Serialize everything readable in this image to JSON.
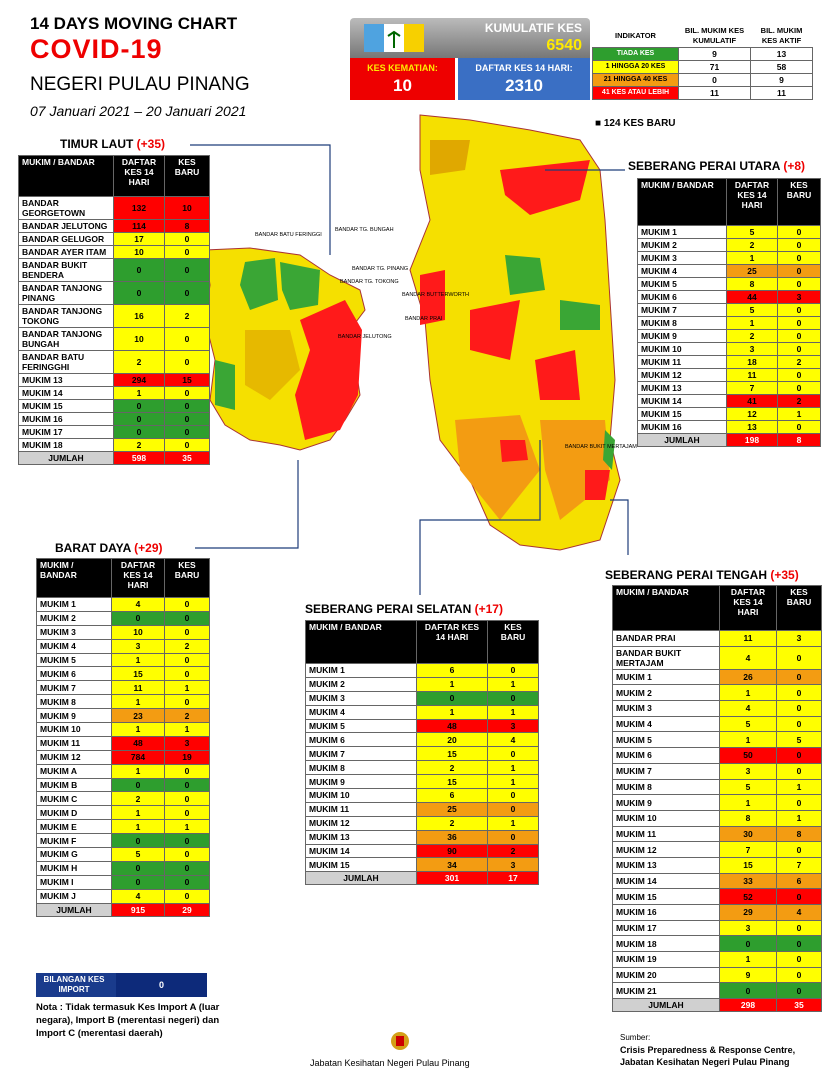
{
  "header": {
    "title": "14  DAYS MOVING CHART",
    "subtitle": "COVID-19",
    "state": "NEGERI PULAU PINANG",
    "dates": "07 Januari 2021 – 20 Januari 2021"
  },
  "summary": {
    "kumulatif_label": "KUMULATIF KES",
    "kumulatif": 6540,
    "kematian_label": "KES KEMATIAN:",
    "kematian": 10,
    "daftar_label": "DAFTAR KES 14 HARI:",
    "daftar": 2310
  },
  "indicator": {
    "headers": [
      "INDIKATOR",
      "BIL. MUKIM KES KUMULATIF",
      "BIL. MUKIM KES AKTIF"
    ],
    "rows": [
      {
        "name": "TIADA KES",
        "kumulatif": 9,
        "aktif": 13,
        "color": "#2e9e2e"
      },
      {
        "name": "1 HINGGA 20 KES",
        "kumulatif": 71,
        "aktif": 58,
        "color": "#ffff00"
      },
      {
        "name": "21 HINGGA 40 KES",
        "kumulatif": 0,
        "aktif": 9,
        "color": "#f39c12"
      },
      {
        "name": "41 KES ATAU LEBIH",
        "kumulatif": 11,
        "aktif": 11,
        "color": "#ff0000"
      }
    ]
  },
  "new_cases": "124 KES BARU",
  "districts": [
    {
      "name": "TIMUR LAUT",
      "badge": "(+35)",
      "headers": [
        "MUKIM / BANDAR",
        "DAFTAR KES 14 HARI",
        "KES BARU"
      ],
      "total_label": "JUMLAH",
      "total_daftar": 598,
      "total_baru": 35,
      "rows": [
        {
          "name": "BANDAR GEORGETOWN",
          "daftar": 132,
          "baru": 10,
          "color": "#ff0000"
        },
        {
          "name": "BANDAR JELUTONG",
          "daftar": 114,
          "baru": 8,
          "color": "#ff0000"
        },
        {
          "name": "BANDAR GELUGOR",
          "daftar": 17,
          "baru": 0,
          "color": "#ffff00"
        },
        {
          "name": "BANDAR AYER ITAM",
          "daftar": 10,
          "baru": 0,
          "color": "#ffff00"
        },
        {
          "name": "BANDAR BUKIT BENDERA",
          "daftar": 0,
          "baru": 0,
          "color": "#2e9e2e"
        },
        {
          "name": "BANDAR TANJONG PINANG",
          "daftar": 0,
          "baru": 0,
          "color": "#2e9e2e"
        },
        {
          "name": "BANDAR TANJONG TOKONG",
          "daftar": 16,
          "baru": 2,
          "color": "#ffff00"
        },
        {
          "name": "BANDAR TANJONG BUNGAH",
          "daftar": 10,
          "baru": 0,
          "color": "#ffff00"
        },
        {
          "name": "BANDAR BATU FERINGGHI",
          "daftar": 2,
          "baru": 0,
          "color": "#ffff00"
        },
        {
          "name": "MUKIM 13",
          "daftar": 294,
          "baru": 15,
          "color": "#ff0000"
        },
        {
          "name": "MUKIM 14",
          "daftar": 1,
          "baru": 0,
          "color": "#ffff00"
        },
        {
          "name": "MUKIM 15",
          "daftar": 0,
          "baru": 0,
          "color": "#2e9e2e"
        },
        {
          "name": "MUKIM 16",
          "daftar": 0,
          "baru": 0,
          "color": "#2e9e2e"
        },
        {
          "name": "MUKIM 17",
          "daftar": 0,
          "baru": 0,
          "color": "#2e9e2e"
        },
        {
          "name": "MUKIM 18",
          "daftar": 2,
          "baru": 0,
          "color": "#ffff00"
        }
      ]
    },
    {
      "name": "SEBERANG PERAI UTARA",
      "badge": "(+8)",
      "headers": [
        "MUKIM / BANDAR",
        "DAFTAR KES 14 HARI",
        "KES BARU"
      ],
      "total_label": "JUMLAH",
      "total_daftar": 198,
      "total_baru": 8,
      "rows": [
        {
          "name": "MUKIM 1",
          "daftar": 5,
          "baru": 0,
          "color": "#ffff00"
        },
        {
          "name": "MUKIM 2",
          "daftar": 2,
          "baru": 0,
          "color": "#ffff00"
        },
        {
          "name": "MUKIM 3",
          "daftar": 1,
          "baru": 0,
          "color": "#ffff00"
        },
        {
          "name": "MUKIM 4",
          "daftar": 25,
          "baru": 0,
          "color": "#f39c12"
        },
        {
          "name": "MUKIM 5",
          "daftar": 8,
          "baru": 0,
          "color": "#ffff00"
        },
        {
          "name": "MUKIM 6",
          "daftar": 44,
          "baru": 3,
          "color": "#ff0000"
        },
        {
          "name": "MUKIM 7",
          "daftar": 5,
          "baru": 0,
          "color": "#ffff00"
        },
        {
          "name": "MUKIM 8",
          "daftar": 1,
          "baru": 0,
          "color": "#ffff00"
        },
        {
          "name": "MUKIM 9",
          "daftar": 2,
          "baru": 0,
          "color": "#ffff00"
        },
        {
          "name": "MUKIM 10",
          "daftar": 3,
          "baru": 0,
          "color": "#ffff00"
        },
        {
          "name": "MUKIM 11",
          "daftar": 18,
          "baru": 2,
          "color": "#ffff00"
        },
        {
          "name": "MUKIM 12",
          "daftar": 11,
          "baru": 0,
          "color": "#ffff00"
        },
        {
          "name": "MUKIM 13",
          "daftar": 7,
          "baru": 0,
          "color": "#ffff00"
        },
        {
          "name": "MUKIM 14",
          "daftar": 41,
          "baru": 2,
          "color": "#ff0000"
        },
        {
          "name": "MUKIM 15",
          "daftar": 12,
          "baru": 1,
          "color": "#ffff00"
        },
        {
          "name": "MUKIM 16",
          "daftar": 13,
          "baru": 0,
          "color": "#ffff00"
        }
      ]
    },
    {
      "name": "BARAT DAYA",
      "badge": "(+29)",
      "headers": [
        "MUKIM / BANDAR",
        "DAFTAR KES 14 HARI",
        "KES BARU"
      ],
      "total_label": "JUMLAH",
      "total_daftar": 915,
      "total_baru": 29,
      "rows": [
        {
          "name": "MUKIM 1",
          "daftar": 4,
          "baru": 0,
          "color": "#ffff00"
        },
        {
          "name": "MUKIM 2",
          "daftar": 0,
          "baru": 0,
          "color": "#2e9e2e"
        },
        {
          "name": "MUKIM 3",
          "daftar": 10,
          "baru": 0,
          "color": "#ffff00"
        },
        {
          "name": "MUKIM 4",
          "daftar": 3,
          "baru": 2,
          "color": "#ffff00"
        },
        {
          "name": "MUKIM 5",
          "daftar": 1,
          "baru": 0,
          "color": "#ffff00"
        },
        {
          "name": "MUKIM 6",
          "daftar": 15,
          "baru": 0,
          "color": "#ffff00"
        },
        {
          "name": "MUKIM 7",
          "daftar": 11,
          "baru": 1,
          "color": "#ffff00"
        },
        {
          "name": "MUKIM 8",
          "daftar": 1,
          "baru": 0,
          "color": "#ffff00"
        },
        {
          "name": "MUKIM 9",
          "daftar": 23,
          "baru": 2,
          "color": "#f39c12"
        },
        {
          "name": "MUKIM 10",
          "daftar": 1,
          "baru": 1,
          "color": "#ffff00"
        },
        {
          "name": "MUKIM 11",
          "daftar": 48,
          "baru": 3,
          "color": "#ff0000"
        },
        {
          "name": "MUKIM 12",
          "daftar": 784,
          "baru": 19,
          "color": "#ff0000"
        },
        {
          "name": "MUKIM A",
          "daftar": 1,
          "baru": 0,
          "color": "#ffff00"
        },
        {
          "name": "MUKIM B",
          "daftar": 0,
          "baru": 0,
          "color": "#2e9e2e"
        },
        {
          "name": "MUKIM C",
          "daftar": 2,
          "baru": 0,
          "color": "#ffff00"
        },
        {
          "name": "MUKIM D",
          "daftar": 1,
          "baru": 0,
          "color": "#ffff00"
        },
        {
          "name": "MUKIM E",
          "daftar": 1,
          "baru": 1,
          "color": "#ffff00"
        },
        {
          "name": "MUKIM F",
          "daftar": 0,
          "baru": 0,
          "color": "#2e9e2e"
        },
        {
          "name": "MUKIM G",
          "daftar": 5,
          "baru": 0,
          "color": "#ffff00"
        },
        {
          "name": "MUKIM H",
          "daftar": 0,
          "baru": 0,
          "color": "#2e9e2e"
        },
        {
          "name": "MUKIM I",
          "daftar": 0,
          "baru": 0,
          "color": "#2e9e2e"
        },
        {
          "name": "MUKIM J",
          "daftar": 4,
          "baru": 0,
          "color": "#ffff00"
        }
      ]
    },
    {
      "name": "SEBERANG PERAI SELATAN",
      "badge": "(+17)",
      "headers": [
        "MUKIM / BANDAR",
        "DAFTAR KES 14 HARI",
        "KES BARU"
      ],
      "total_label": "JUMLAH",
      "total_daftar": 301,
      "total_baru": 17,
      "rows": [
        {
          "name": "MUKIM 1",
          "daftar": 6,
          "baru": 0,
          "color": "#ffff00"
        },
        {
          "name": "MUKIM 2",
          "daftar": 1,
          "baru": 1,
          "color": "#ffff00"
        },
        {
          "name": "MUKIM 3",
          "daftar": 0,
          "baru": 0,
          "color": "#2e9e2e"
        },
        {
          "name": "MUKIM 4",
          "daftar": 1,
          "baru": 1,
          "color": "#ffff00"
        },
        {
          "name": "MUKIM 5",
          "daftar": 48,
          "baru": 3,
          "color": "#ff0000"
        },
        {
          "name": "MUKIM 6",
          "daftar": 20,
          "baru": 4,
          "color": "#ffff00"
        },
        {
          "name": "MUKIM 7",
          "daftar": 15,
          "baru": 0,
          "color": "#ffff00"
        },
        {
          "name": "MUKIM 8",
          "daftar": 2,
          "baru": 1,
          "color": "#ffff00"
        },
        {
          "name": "MUKIM 9",
          "daftar": 15,
          "baru": 1,
          "color": "#ffff00"
        },
        {
          "name": "MUKIM 10",
          "daftar": 6,
          "baru": 0,
          "color": "#ffff00"
        },
        {
          "name": "MUKIM 11",
          "daftar": 25,
          "baru": 0,
          "color": "#f39c12"
        },
        {
          "name": "MUKIM 12",
          "daftar": 2,
          "baru": 1,
          "color": "#ffff00"
        },
        {
          "name": "MUKIM 13",
          "daftar": 36,
          "baru": 0,
          "color": "#f39c12"
        },
        {
          "name": "MUKIM 14",
          "daftar": 90,
          "baru": 2,
          "color": "#ff0000"
        },
        {
          "name": "MUKIM 15",
          "daftar": 34,
          "baru": 3,
          "color": "#f39c12"
        }
      ]
    },
    {
      "name": "SEBERANG PERAI TENGAH",
      "badge": "(+35)",
      "headers": [
        "MUKIM / BANDAR",
        "DAFTAR KES 14 HARI",
        "KES BARU"
      ],
      "total_label": "JUMLAH",
      "total_daftar": 298,
      "total_baru": 35,
      "rows": [
        {
          "name": "BANDAR PRAI",
          "daftar": 11,
          "baru": 3,
          "color": "#ffff00"
        },
        {
          "name": "BANDAR BUKIT MERTAJAM",
          "daftar": 4,
          "baru": 0,
          "color": "#ffff00"
        },
        {
          "name": "MUKIM 1",
          "daftar": 26,
          "baru": 0,
          "color": "#f39c12"
        },
        {
          "name": "MUKIM 2",
          "daftar": 1,
          "baru": 0,
          "color": "#ffff00"
        },
        {
          "name": "MUKIM 3",
          "daftar": 4,
          "baru": 0,
          "color": "#ffff00"
        },
        {
          "name": "MUKIM 4",
          "daftar": 5,
          "baru": 0,
          "color": "#ffff00"
        },
        {
          "name": "MUKIM 5",
          "daftar": 1,
          "baru": 5,
          "color": "#ffff00"
        },
        {
          "name": "MUKIM 6",
          "daftar": 50,
          "baru": 0,
          "color": "#ff0000"
        },
        {
          "name": "MUKIM 7",
          "daftar": 3,
          "baru": 0,
          "color": "#ffff00"
        },
        {
          "name": "MUKIM 8",
          "daftar": 5,
          "baru": 1,
          "color": "#ffff00"
        },
        {
          "name": "MUKIM 9",
          "daftar": 1,
          "baru": 0,
          "color": "#ffff00"
        },
        {
          "name": "MUKIM 10",
          "daftar": 8,
          "baru": 1,
          "color": "#ffff00"
        },
        {
          "name": "MUKIM 11",
          "daftar": 30,
          "baru": 8,
          "color": "#f39c12"
        },
        {
          "name": "MUKIM 12",
          "daftar": 7,
          "baru": 0,
          "color": "#ffff00"
        },
        {
          "name": "MUKIM 13",
          "daftar": 15,
          "baru": 7,
          "color": "#ffff00"
        },
        {
          "name": "MUKIM 14",
          "daftar": 33,
          "baru": 6,
          "color": "#f39c12"
        },
        {
          "name": "MUKIM 15",
          "daftar": 52,
          "baru": 0,
          "color": "#ff0000"
        },
        {
          "name": "MUKIM 16",
          "daftar": 29,
          "baru": 4,
          "color": "#f39c12"
        },
        {
          "name": "MUKIM 17",
          "daftar": 3,
          "baru": 0,
          "color": "#ffff00"
        },
        {
          "name": "MUKIM 18",
          "daftar": 0,
          "baru": 0,
          "color": "#2e9e2e"
        },
        {
          "name": "MUKIM 19",
          "daftar": 1,
          "baru": 0,
          "color": "#ffff00"
        },
        {
          "name": "MUKIM 20",
          "daftar": 9,
          "baru": 0,
          "color": "#ffff00"
        },
        {
          "name": "MUKIM 21",
          "daftar": 0,
          "baru": 0,
          "color": "#2e9e2e"
        }
      ]
    }
  ],
  "map": {
    "labels": [
      "BANDAR BATU FERINGGI",
      "BANDAR TG. BUNGAH",
      "BANDAR TG. PINANG",
      "BANDAR TG. TOKONG",
      "BANDAR JELUTONG",
      "BANDAR BUTTERWORTH",
      "BANDAR PRAI",
      "BANDAR BUKIT MERTAJAM"
    ]
  },
  "import": {
    "label": "BILANGAN KES IMPORT",
    "value": 0,
    "note": "Nota : Tidak termasuk Kes Import A (luar negara), Import B (merentasi negeri) dan Import C (merentasi daerah)"
  },
  "footer": {
    "agency": "Jabatan Kesihatan Negeri Pulau Pinang",
    "source_label": "Sumber:",
    "source": "Crisis Preparedness & Response Centre, Jabatan Kesihatan Negeri Pulau Pinang"
  }
}
